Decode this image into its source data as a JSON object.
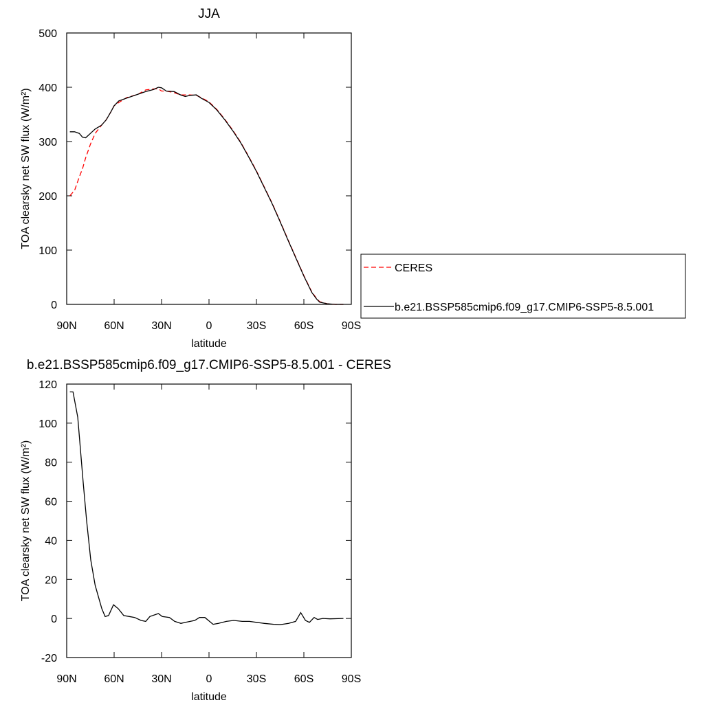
{
  "chart_data": [
    {
      "type": "line",
      "title": "JJA",
      "x_label": "latitude",
      "y_label": "TOA clearsky net SW flux (W/m²)",
      "x": [
        88,
        85,
        82,
        80,
        78,
        75,
        72,
        68,
        65,
        62,
        60,
        57,
        52,
        45,
        40,
        35,
        32,
        30,
        27,
        22,
        18,
        15,
        12,
        8,
        5,
        0,
        -5,
        -10,
        -15,
        -20,
        -25,
        -30,
        -35,
        -40,
        -45,
        -50,
        -55,
        -60,
        -65,
        -68,
        -70,
        -75,
        -80,
        -85
      ],
      "xlim": [
        90,
        -90
      ],
      "xticks": [
        {
          "value": 90,
          "label": "90N"
        },
        {
          "value": 60,
          "label": "60N"
        },
        {
          "value": 30,
          "label": "30N"
        },
        0,
        {
          "value": -30,
          "label": "30S"
        },
        {
          "value": -60,
          "label": "60S"
        },
        {
          "value": -90,
          "label": "90S"
        }
      ],
      "ylim": [
        0,
        500
      ],
      "yticks": [
        0,
        100,
        200,
        300,
        400,
        500
      ],
      "legend": "right",
      "series": [
        {
          "name": "CERES",
          "color": "#ff0000",
          "dash": true,
          "values": [
            200,
            210,
            235,
            250,
            270,
            295,
            315,
            330,
            340,
            355,
            366,
            372,
            381,
            387,
            395,
            397,
            397,
            393,
            393,
            390,
            386,
            386,
            386,
            385,
            381,
            373,
            359,
            341,
            321,
            299,
            273,
            246,
            216,
            186,
            153,
            119,
            86,
            53,
            23,
            11,
            5,
            1,
            0,
            0
          ]
        },
        {
          "name": "b.e21.BSSP585cmip6.f09_g17.CMIP6-SSP5-8.5.001",
          "color": "#000000",
          "dash": false,
          "values": [
            318,
            318,
            315,
            308,
            307,
            315,
            323,
            330,
            340,
            355,
            366,
            375,
            380,
            387,
            392,
            396,
            400,
            399,
            393,
            392,
            386,
            383,
            385,
            386,
            380,
            372,
            358,
            340,
            320,
            298,
            272,
            245,
            215,
            185,
            152,
            118,
            85,
            52,
            22,
            10,
            4,
            1,
            0,
            0
          ]
        }
      ]
    },
    {
      "type": "line",
      "title": "b.e21.BSSP585cmip6.f09_g17.CMIP6-SSP5-8.5.001 - CERES",
      "x_label": "latitude",
      "y_label": "TOA clearsky net SW flux (W/m²)",
      "x": [
        88,
        86,
        83,
        79.6,
        77.4,
        74.8,
        72,
        67.8,
        65.7,
        63.5,
        60.4,
        57.4,
        53.9,
        50.4,
        47,
        43,
        40,
        37.4,
        32,
        29.6,
        25,
        21.7,
        17.8,
        14.8,
        9,
        6,
        2.6,
        -2.6,
        -6,
        -11,
        -15.6,
        -21,
        -25.6,
        -30,
        -35,
        -41,
        -45,
        -50.4,
        -54.8,
        -58,
        -61,
        -63.5,
        -66.5,
        -68.7,
        -72,
        -76.5,
        -85
      ],
      "xlim": [
        90,
        -90
      ],
      "xticks": [
        {
          "value": 90,
          "label": "90N"
        },
        {
          "value": 60,
          "label": "60N"
        },
        {
          "value": 30,
          "label": "30N"
        },
        0,
        {
          "value": -30,
          "label": "30S"
        },
        {
          "value": -60,
          "label": "60S"
        },
        {
          "value": -90,
          "label": "90S"
        }
      ],
      "ylim": [
        -20,
        120
      ],
      "yticks": [
        -20,
        0,
        20,
        40,
        60,
        80,
        100,
        120
      ],
      "series": [
        {
          "color": "#000000",
          "dash": false,
          "values": [
            116,
            116,
            103,
            70,
            50,
            30,
            17,
            5,
            1,
            1.5,
            7,
            5,
            1.5,
            1,
            0.5,
            -1,
            -1.5,
            1,
            2.5,
            1,
            0.5,
            -1.5,
            -2.5,
            -2,
            -1,
            0.5,
            0.5,
            -3,
            -2.5,
            -1.5,
            -1,
            -1.5,
            -1.5,
            -2,
            -2.5,
            -3,
            -3.2,
            -2.5,
            -1.5,
            3,
            -1,
            -2,
            0.5,
            -0.5,
            0,
            -0.2,
            0
          ]
        }
      ]
    }
  ]
}
